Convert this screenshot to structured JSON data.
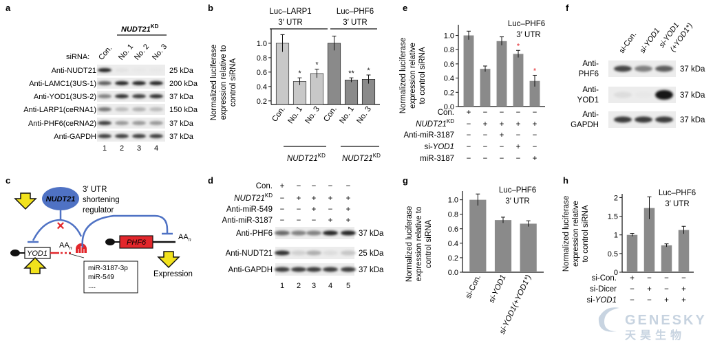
{
  "panels": {
    "a": {
      "letter": "a",
      "header": "NUDT21",
      "header_sup": "KD",
      "sirna_label": "siRNA:",
      "conditions": [
        "Con.",
        "No. 1",
        "No. 2",
        "No. 3"
      ],
      "rows": [
        {
          "label": "Anti-NUDT21",
          "kda": "25 kDa"
        },
        {
          "label": "Anti-LAMC1(3US-1)",
          "kda": "200 kDa"
        },
        {
          "label": "Anti-YOD1(3US-2)",
          "kda": "37 kDa"
        },
        {
          "label": "Anti-LARP1(ceRNA1)",
          "kda": "150 kDa"
        },
        {
          "label": "Anti-PHF6(ceRNA2)",
          "kda": "37 kDa"
        },
        {
          "label": "Anti-GAPDH",
          "kda": "37 kDa"
        }
      ],
      "lanes": [
        "1",
        "2",
        "3",
        "4"
      ]
    },
    "b": {
      "letter": "b",
      "group_titles": [
        [
          "Luc–LARP1",
          "3′ UTR"
        ],
        [
          "Luc–PHF6",
          "3′ UTR"
        ]
      ],
      "ylabel": [
        "Normalized luciferase",
        "expression relative to",
        "control siRNA"
      ],
      "bottom_labels": [
        {
          "main": "NUDT21",
          "sup": "KD"
        },
        {
          "main": "NUDT21",
          "sup": "KD"
        }
      ]
    },
    "c": {
      "letter": "c",
      "utr_label": [
        "3′ UTR",
        "shortening",
        "regulator"
      ],
      "nudt21": "NUDT21",
      "yod1": "YOD1",
      "phf6": "PHF6",
      "aa": "AA",
      "aa_sub": "n",
      "mirnas": [
        "miR-3187-3p",
        "miR-549",
        "...."
      ],
      "expression": "Expression"
    },
    "d": {
      "letter": "d",
      "treat_rows": [
        {
          "label": "Con.",
          "marks": [
            "+",
            "−",
            "−",
            "−",
            "−"
          ]
        },
        {
          "label": "NUDT21",
          "sup": "KD",
          "marks": [
            "−",
            "+",
            "+",
            "+",
            "+"
          ]
        },
        {
          "label": "Anti-miR-549",
          "marks": [
            "−",
            "−",
            "+",
            "−",
            "+"
          ]
        },
        {
          "label": "Anti-miR-3187",
          "marks": [
            "−",
            "−",
            "−",
            "+",
            "+"
          ]
        }
      ],
      "blots": [
        {
          "label": "Anti-PHF6",
          "kda": "37 kDa"
        },
        {
          "label": "Anti-NUDT21",
          "kda": "25 kDa"
        },
        {
          "label": "Anti-GAPDH",
          "kda": "37 kDa"
        }
      ],
      "lanes": [
        "1",
        "2",
        "3",
        "4",
        "5"
      ]
    },
    "e": {
      "letter": "e",
      "title": [
        "Luc–PHF6",
        "3′ UTR"
      ],
      "ylabel": [
        "Normalized luciferase",
        "expression relative",
        "to control siRNA"
      ],
      "treat_rows": [
        {
          "label": "Con.",
          "marks": [
            "+",
            "−",
            "−",
            "−",
            "−"
          ]
        },
        {
          "label": "NUDT21",
          "sup": "KD",
          "marks": [
            "−",
            "+",
            "+",
            "+",
            "+"
          ]
        },
        {
          "label": "Anti-miR-3187",
          "marks": [
            "−",
            "−",
            "+",
            "−",
            "−"
          ]
        },
        {
          "label": "si-YOD1",
          "marks": [
            "−",
            "−",
            "−",
            "+",
            "−"
          ]
        },
        {
          "label": "miR-3187",
          "marks": [
            "−",
            "−",
            "−",
            "−",
            "+"
          ]
        }
      ]
    },
    "f": {
      "letter": "f",
      "conditions": [
        "si-Con.",
        "si-YOD1",
        "si-YOD1",
        "(+YOD1*)"
      ],
      "blots": [
        {
          "label": [
            "Anti-",
            "PHF6"
          ],
          "kda": "37 kDa"
        },
        {
          "label": [
            "Anti-",
            "YOD1"
          ],
          "kda": "37 kDa"
        },
        {
          "label": [
            "Anti-",
            "GAPDH"
          ],
          "kda": "37 kDa"
        }
      ]
    },
    "g": {
      "letter": "g",
      "title": [
        "Luc–PHF6",
        "3′ UTR"
      ],
      "ylabel": [
        "Normalized luciferase",
        "expression relative to",
        "control siRNA"
      ]
    },
    "h": {
      "letter": "h",
      "title": [
        "Luc–PHF6",
        "3′ UTR"
      ],
      "ylabel": [
        "Normalized luciferase",
        "expression relative",
        "to control siRNA"
      ],
      "treat_rows": [
        {
          "label": "si-Con.",
          "marks": [
            "+",
            "−",
            "−",
            "−"
          ]
        },
        {
          "label": "si-Dicer",
          "marks": [
            "−",
            "+",
            "−",
            "+"
          ]
        },
        {
          "label": "si-YOD1",
          "marks": [
            "−",
            "−",
            "+",
            "+"
          ]
        }
      ]
    }
  },
  "watermark": {
    "en": "GENESKY",
    "cn": "天昊生物"
  },
  "chart_data": [
    {
      "panel": "b",
      "type": "bar",
      "categories": [
        "Con.",
        "No. 1",
        "No. 3",
        "Con.",
        "No. 1",
        "No. 3"
      ],
      "values": [
        1.0,
        0.47,
        0.58,
        1.0,
        0.49,
        0.5
      ],
      "errors": [
        0.12,
        0.05,
        0.06,
        0.1,
        0.03,
        0.06
      ],
      "significance": [
        "",
        "*",
        "*",
        "",
        "**",
        "*"
      ],
      "bar_colors": [
        "#c8c8c8",
        "#c8c8c8",
        "#c8c8c8",
        "#8a8a8a",
        "#8a8a8a",
        "#8a8a8a"
      ],
      "yticks": [
        "0.2",
        "0.4",
        "0.6",
        "0.8",
        "1.0"
      ],
      "ylim": [
        0.15,
        1.2
      ]
    },
    {
      "panel": "e",
      "type": "bar",
      "values": [
        1.0,
        0.53,
        0.92,
        0.74,
        0.36
      ],
      "errors": [
        0.06,
        0.04,
        0.06,
        0.05,
        0.08
      ],
      "significance": [
        "",
        "",
        "",
        "*",
        "*"
      ],
      "bar_color": "#8a8a8a",
      "yticks": [
        "0.0",
        "0.2",
        "0.4",
        "0.6",
        "0.8",
        "1.0"
      ],
      "ylim": [
        0,
        1.15
      ]
    },
    {
      "panel": "g",
      "type": "bar",
      "categories": [
        "si-Con.",
        "si-YOD1",
        "si-YOD1(+YOD1*)"
      ],
      "values": [
        1.0,
        0.72,
        0.67
      ],
      "errors": [
        0.08,
        0.04,
        0.04
      ],
      "bar_color": "#8a8a8a",
      "yticks": [
        "0.0",
        "0.2",
        "0.4",
        "0.6",
        "0.8",
        "1.0"
      ],
      "ylim": [
        0,
        1.12
      ]
    },
    {
      "panel": "h",
      "type": "bar",
      "values": [
        1.0,
        1.72,
        0.72,
        1.13
      ],
      "errors": [
        0.04,
        0.3,
        0.04,
        0.1
      ],
      "bar_color": "#8a8a8a",
      "yticks": [
        "0",
        "0.5",
        "1",
        "1.5",
        "2"
      ],
      "ylim": [
        0,
        2.1
      ]
    }
  ]
}
